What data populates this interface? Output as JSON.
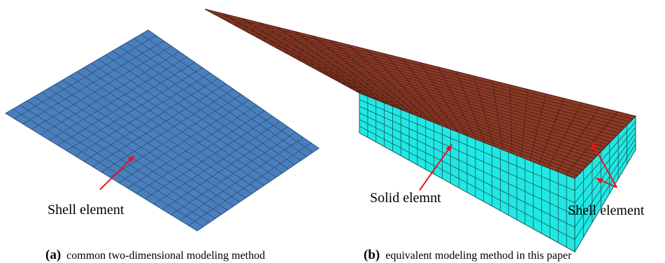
{
  "panel_a": {
    "annotation": "Shell element",
    "label": "(a)",
    "caption": "common two-dimensional modeling method"
  },
  "panel_b": {
    "annotation_solid": "Solid elemnt",
    "annotation_shell": "Shell element",
    "label": "(b)",
    "caption": "equivalent modeling method in this paper"
  }
}
